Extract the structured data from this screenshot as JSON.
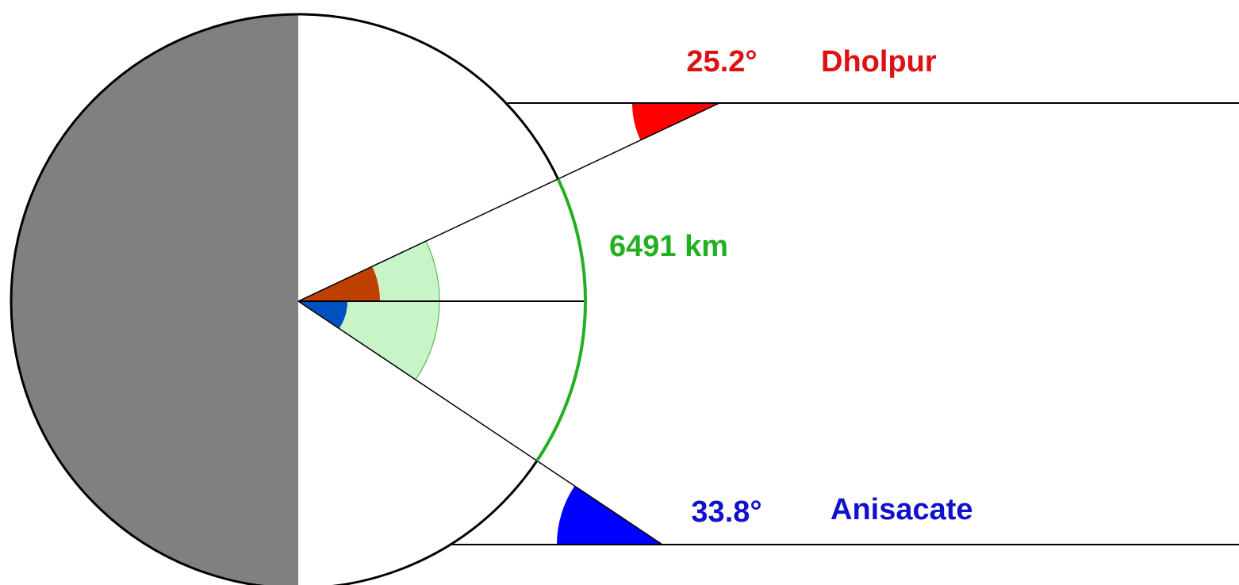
{
  "labels": {
    "top_angle": "25.2°",
    "top_place": "Dholpur",
    "distance": "6491 km",
    "bottom_angle": "33.8°",
    "bottom_place": "Anisacate"
  }
}
